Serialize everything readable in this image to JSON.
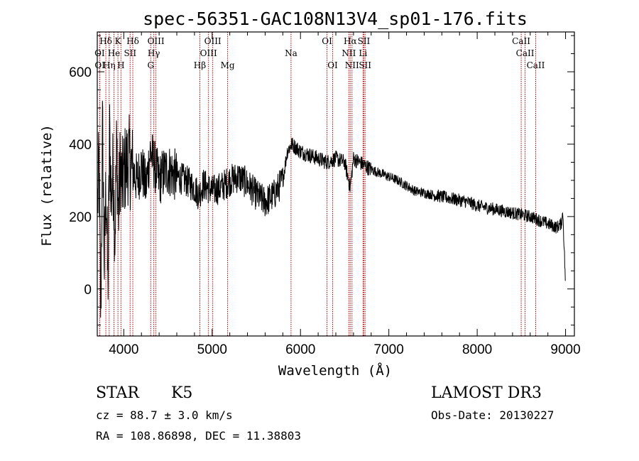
{
  "chart_data": {
    "type": "line",
    "title": "spec-56351-GAC108N13V4_sp01-176.fits",
    "xlabel": "Wavelength (Å)",
    "ylabel": "Flux (relative)",
    "xlim": [
      3700,
      9100
    ],
    "ylim": [
      -130,
      710
    ],
    "x_ticks": [
      4000,
      5000,
      6000,
      7000,
      8000,
      9000
    ],
    "y_ticks": [
      0,
      200,
      400,
      600
    ],
    "series": [
      {
        "name": "flux",
        "x": [
          3700,
          3720,
          3740,
          3760,
          3780,
          3800,
          3820,
          3840,
          3860,
          3880,
          3900,
          3920,
          3940,
          3960,
          3980,
          4000,
          4050,
          4100,
          4150,
          4200,
          4250,
          4300,
          4350,
          4400,
          4450,
          4500,
          4600,
          4700,
          4800,
          4850,
          4900,
          5000,
          5100,
          5200,
          5300,
          5400,
          5500,
          5600,
          5700,
          5800,
          5850,
          5900,
          5950,
          6000,
          6100,
          6200,
          6300,
          6400,
          6500,
          6563,
          6600,
          6700,
          6800,
          6900,
          7000,
          7100,
          7200,
          7300,
          7400,
          7500,
          7600,
          7700,
          7800,
          7900,
          8000,
          8100,
          8200,
          8300,
          8400,
          8500,
          8600,
          8700,
          8800,
          8900,
          8950,
          8970,
          9000
        ],
        "y": [
          200,
          350,
          -80,
          450,
          60,
          300,
          0,
          420,
          250,
          330,
          150,
          400,
          200,
          350,
          280,
          320,
          360,
          330,
          300,
          340,
          280,
          380,
          340,
          300,
          320,
          330,
          310,
          300,
          280,
          260,
          290,
          270,
          280,
          300,
          310,
          290,
          260,
          240,
          260,
          300,
          380,
          400,
          390,
          380,
          370,
          360,
          350,
          360,
          350,
          280,
          360,
          345,
          330,
          320,
          310,
          300,
          285,
          270,
          265,
          260,
          255,
          250,
          245,
          240,
          230,
          225,
          220,
          215,
          210,
          205,
          200,
          190,
          180,
          170,
          180,
          210,
          10
        ]
      }
    ],
    "lines": [
      {
        "label": "Hδ",
        "w": 3797,
        "row": 0
      },
      {
        "label": "K",
        "w": 3934,
        "row": 0
      },
      {
        "label": "Hδ",
        "w": 4102,
        "row": 0
      },
      {
        "label": "OIII",
        "w": 4364,
        "row": 0
      },
      {
        "label": "OIII",
        "w": 5007,
        "row": 0
      },
      {
        "label": "OI",
        "w": 6300,
        "row": 0
      },
      {
        "label": "Hα",
        "w": 6563,
        "row": 0
      },
      {
        "label": "SII",
        "w": 6717,
        "row": 0
      },
      {
        "label": "CaII",
        "w": 8498,
        "row": 0
      },
      {
        "label": "OI",
        "w": 3727,
        "row": 1
      },
      {
        "label": "He",
        "w": 3889,
        "row": 1
      },
      {
        "label": "SII",
        "w": 4072,
        "row": 1
      },
      {
        "label": "Hγ",
        "w": 4340,
        "row": 1
      },
      {
        "label": "OIII",
        "w": 4959,
        "row": 1
      },
      {
        "label": "Na",
        "w": 5893,
        "row": 1
      },
      {
        "label": "NII",
        "w": 6548,
        "row": 1
      },
      {
        "label": "Li",
        "w": 6708,
        "row": 1
      },
      {
        "label": "CaII",
        "w": 8542,
        "row": 1
      },
      {
        "label": "OI",
        "w": 3729,
        "row": 2
      },
      {
        "label": "Hη",
        "w": 3835,
        "row": 2
      },
      {
        "label": "H",
        "w": 3968,
        "row": 2
      },
      {
        "label": "G",
        "w": 4305,
        "row": 2
      },
      {
        "label": "Hβ",
        "w": 4861,
        "row": 2
      },
      {
        "label": "Mg",
        "w": 5175,
        "row": 2
      },
      {
        "label": "OI",
        "w": 6364,
        "row": 2
      },
      {
        "label": "NII",
        "w": 6583,
        "row": 2
      },
      {
        "label": "SII",
        "w": 6731,
        "row": 2
      },
      {
        "label": "CaII",
        "w": 8662,
        "row": 2
      }
    ]
  },
  "info": {
    "object_class": "STAR",
    "subclass": "K5",
    "survey": "LAMOST DR3",
    "cz": "cz = 88.7 ± 3.0 km/s",
    "obs_date": "Obs-Date: 20130227",
    "radec": "RA = 108.86898, DEC =  11.38803"
  },
  "colors": {
    "line_marker": "#c00000",
    "spectrum": "#000000",
    "axes": "#000000"
  }
}
